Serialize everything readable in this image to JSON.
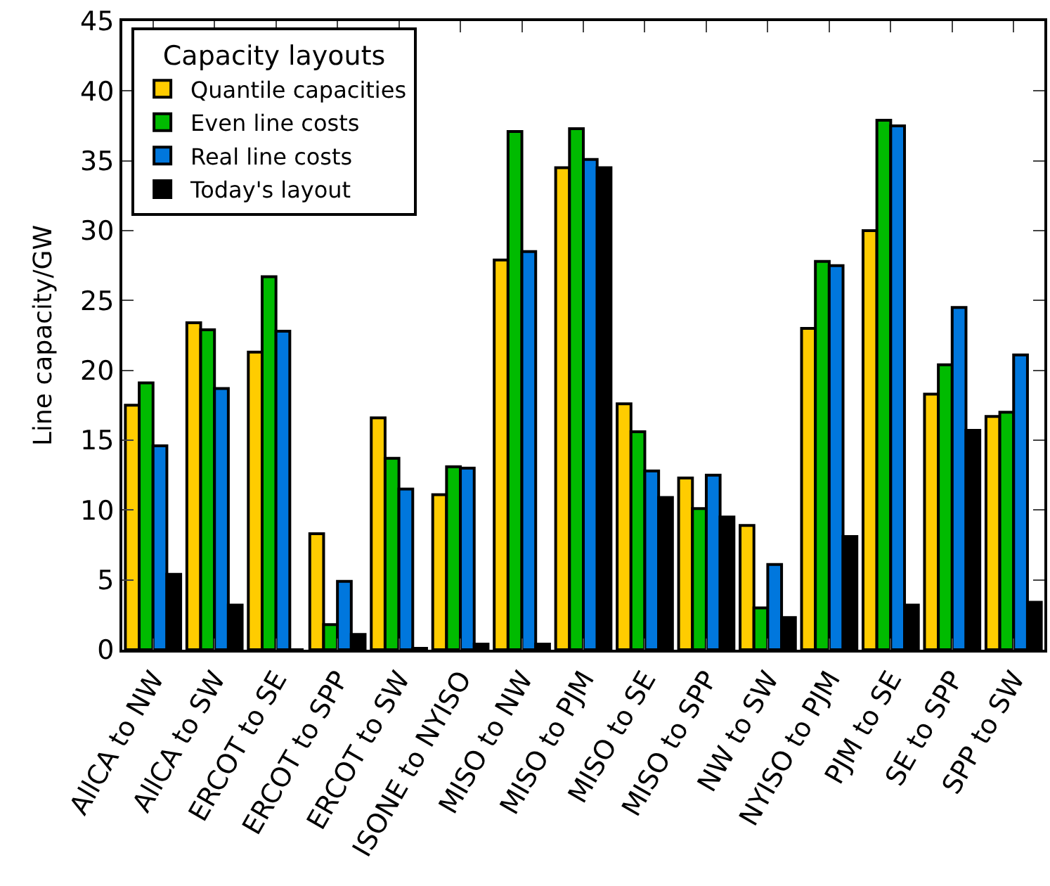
{
  "chart_data": {
    "type": "bar",
    "ylabel": "Line capacity/GW",
    "legend_title": "Capacity layouts",
    "legend": "top left",
    "categories": [
      "AllCA to NW",
      "AllCA to SW",
      "ERCOT to SE",
      "ERCOT to SPP",
      "ERCOT to SW",
      "ISONE to NYISO",
      "MISO to NW",
      "MISO to PJM",
      "MISO to SE",
      "MISO to SPP",
      "NW to SW",
      "NYISO to PJM",
      "PJM to SE",
      "SE to SPP",
      "SPP to SW"
    ],
    "ylim": [
      0,
      45
    ],
    "yticks": [
      0,
      5,
      10,
      15,
      20,
      25,
      30,
      35,
      40,
      45
    ],
    "series": [
      {
        "name": "Quantile capacities",
        "color": "#ffcc00",
        "values": [
          17.5,
          23.4,
          21.3,
          8.3,
          16.6,
          11.1,
          27.9,
          34.5,
          17.6,
          12.3,
          8.9,
          23.0,
          30.0,
          18.3,
          16.7
        ]
      },
      {
        "name": "Even line costs",
        "color": "#00bb00",
        "values": [
          19.1,
          22.9,
          26.7,
          1.8,
          13.7,
          13.1,
          37.1,
          37.3,
          15.6,
          10.1,
          3.0,
          27.8,
          37.9,
          20.4,
          17.0
        ]
      },
      {
        "name": "Real line costs",
        "color": "#0077dd",
        "values": [
          14.6,
          18.7,
          22.8,
          4.9,
          11.5,
          13.0,
          28.5,
          35.1,
          12.8,
          12.5,
          6.1,
          27.5,
          37.5,
          24.5,
          21.1
        ]
      },
      {
        "name": "Today's layout",
        "color": "#000000",
        "values": [
          5.4,
          3.2,
          0,
          1.1,
          0.1,
          0.4,
          0.4,
          34.5,
          10.9,
          9.5,
          2.3,
          8.1,
          3.2,
          15.7,
          3.4
        ]
      }
    ]
  }
}
